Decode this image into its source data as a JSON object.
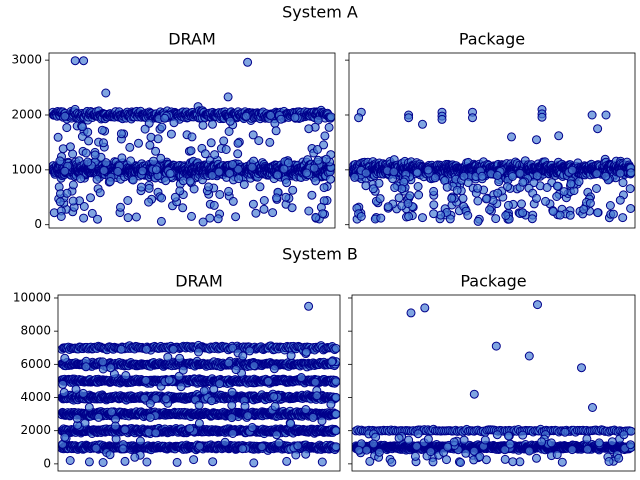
{
  "chart_data": [
    {
      "type": "scatter",
      "group": "System A",
      "title": "DRAM",
      "ylim": [
        -60,
        3130
      ],
      "yticks": [
        0,
        1000,
        2000,
        3000
      ],
      "show_yticklabels": true,
      "x_ticks_shown": false,
      "bands": [
        {
          "y": 1000,
          "spread": 110,
          "count": 1100
        },
        {
          "y": 2000,
          "spread": 60,
          "count": 480
        }
      ],
      "outliers": [
        {
          "x": 0.08,
          "y": 2990
        },
        {
          "x": 0.11,
          "y": 2990
        },
        {
          "x": 0.7,
          "y": 2960
        },
        {
          "x": 0.19,
          "y": 2400
        },
        {
          "x": 0.63,
          "y": 2330
        },
        {
          "x": 0.03,
          "y": 250
        },
        {
          "x": 0.03,
          "y": 150
        },
        {
          "x": 0.11,
          "y": 120
        },
        {
          "x": 0.16,
          "y": 100
        },
        {
          "x": 0.27,
          "y": 130
        },
        {
          "x": 0.3,
          "y": 140
        },
        {
          "x": 0.39,
          "y": 60
        },
        {
          "x": 0.54,
          "y": 50
        },
        {
          "x": 0.73,
          "y": 210
        },
        {
          "x": 0.79,
          "y": 220
        },
        {
          "x": 0.86,
          "y": 310
        },
        {
          "x": 0.92,
          "y": 250
        },
        {
          "x": 0.97,
          "y": 200
        },
        {
          "x": 0.44,
          "y": 500
        },
        {
          "x": 0.6,
          "y": 550
        },
        {
          "x": 0.5,
          "y": 1600
        },
        {
          "x": 0.78,
          "y": 1500
        },
        {
          "x": 0.92,
          "y": 1750
        }
      ],
      "scatter_points": 220,
      "seed": 11
    },
    {
      "type": "scatter",
      "group": "System A",
      "title": "Package",
      "ylim": [
        -60,
        3130
      ],
      "yticks": [
        0,
        1000,
        2000,
        3000
      ],
      "show_yticklabels": false,
      "x_ticks_shown": false,
      "bands": [
        {
          "y": 1000,
          "spread": 110,
          "count": 1100
        }
      ],
      "outliers": [
        {
          "x": 0.03,
          "y": 2050
        },
        {
          "x": 0.02,
          "y": 1950
        },
        {
          "x": 0.2,
          "y": 2000
        },
        {
          "x": 0.2,
          "y": 1950
        },
        {
          "x": 0.25,
          "y": 1830
        },
        {
          "x": 0.32,
          "y": 2050
        },
        {
          "x": 0.32,
          "y": 1980
        },
        {
          "x": 0.32,
          "y": 1920
        },
        {
          "x": 0.43,
          "y": 2050
        },
        {
          "x": 0.43,
          "y": 1950
        },
        {
          "x": 0.68,
          "y": 2100
        },
        {
          "x": 0.68,
          "y": 2020
        },
        {
          "x": 0.68,
          "y": 1960
        },
        {
          "x": 0.86,
          "y": 2000
        },
        {
          "x": 0.91,
          "y": 2000
        },
        {
          "x": 0.88,
          "y": 1750
        },
        {
          "x": 0.57,
          "y": 1600
        },
        {
          "x": 0.66,
          "y": 1550
        },
        {
          "x": 0.74,
          "y": 1620
        },
        {
          "x": 0.02,
          "y": 200
        },
        {
          "x": 0.03,
          "y": 150
        },
        {
          "x": 0.1,
          "y": 120
        },
        {
          "x": 0.2,
          "y": 150
        },
        {
          "x": 0.25,
          "y": 130
        },
        {
          "x": 0.29,
          "y": 200
        },
        {
          "x": 0.45,
          "y": 60
        },
        {
          "x": 0.61,
          "y": 220
        },
        {
          "x": 0.72,
          "y": 240
        },
        {
          "x": 0.83,
          "y": 280
        },
        {
          "x": 0.88,
          "y": 220
        },
        {
          "x": 0.97,
          "y": 130
        },
        {
          "x": 0.48,
          "y": 470
        },
        {
          "x": 0.66,
          "y": 480
        }
      ],
      "scatter_points": 200,
      "seed": 23
    },
    {
      "type": "scatter",
      "group": "System B",
      "title": "DRAM",
      "ylim": [
        -430,
        10180
      ],
      "yticks": [
        0,
        2000,
        4000,
        6000,
        8000,
        10000
      ],
      "show_yticklabels": true,
      "x_ticks_shown": false,
      "bands": [
        {
          "y": 1000,
          "spread": 110,
          "count": 520
        },
        {
          "y": 2000,
          "spread": 110,
          "count": 520
        },
        {
          "y": 3000,
          "spread": 110,
          "count": 520
        },
        {
          "y": 4000,
          "spread": 110,
          "count": 470
        },
        {
          "y": 5000,
          "spread": 110,
          "count": 430
        },
        {
          "y": 6000,
          "spread": 110,
          "count": 360
        },
        {
          "y": 7000,
          "spread": 100,
          "count": 220
        }
      ],
      "outliers": [
        {
          "x": 0.9,
          "y": 9500
        },
        {
          "x": 0.66,
          "y": 6500
        },
        {
          "x": 0.03,
          "y": 200
        },
        {
          "x": 0.1,
          "y": 120
        },
        {
          "x": 0.15,
          "y": 80
        },
        {
          "x": 0.23,
          "y": 150
        },
        {
          "x": 0.31,
          "y": 110
        },
        {
          "x": 0.42,
          "y": 90
        },
        {
          "x": 0.55,
          "y": 130
        },
        {
          "x": 0.7,
          "y": 60
        },
        {
          "x": 0.82,
          "y": 150
        },
        {
          "x": 0.95,
          "y": 110
        }
      ],
      "scatter_points": 120,
      "seed": 37
    },
    {
      "type": "scatter",
      "group": "System B",
      "title": "Package",
      "ylim": [
        -430,
        10180
      ],
      "yticks": [
        0,
        2000,
        4000,
        6000,
        8000,
        10000
      ],
      "show_yticklabels": false,
      "x_ticks_shown": false,
      "bands": [
        {
          "y": 1000,
          "spread": 110,
          "count": 950
        },
        {
          "y": 2000,
          "spread": 60,
          "count": 150
        }
      ],
      "outliers": [
        {
          "x": 0.2,
          "y": 9100
        },
        {
          "x": 0.25,
          "y": 9400
        },
        {
          "x": 0.66,
          "y": 9600
        },
        {
          "x": 0.51,
          "y": 7100
        },
        {
          "x": 0.63,
          "y": 6500
        },
        {
          "x": 0.82,
          "y": 5800
        },
        {
          "x": 0.86,
          "y": 3400
        },
        {
          "x": 0.43,
          "y": 4200
        },
        {
          "x": 0.05,
          "y": 150
        },
        {
          "x": 0.13,
          "y": 100
        },
        {
          "x": 0.28,
          "y": 120
        },
        {
          "x": 0.38,
          "y": 80
        },
        {
          "x": 0.57,
          "y": 130
        },
        {
          "x": 0.75,
          "y": 100
        },
        {
          "x": 0.92,
          "y": 140
        }
      ],
      "scatter_points": 80,
      "seed": 53
    }
  ],
  "figure": {
    "group_titles": [
      "System A",
      "System B"
    ],
    "marker_fill": "#4a7fd4",
    "marker_edge": "#00008b",
    "marker_opacity": 0.7
  }
}
